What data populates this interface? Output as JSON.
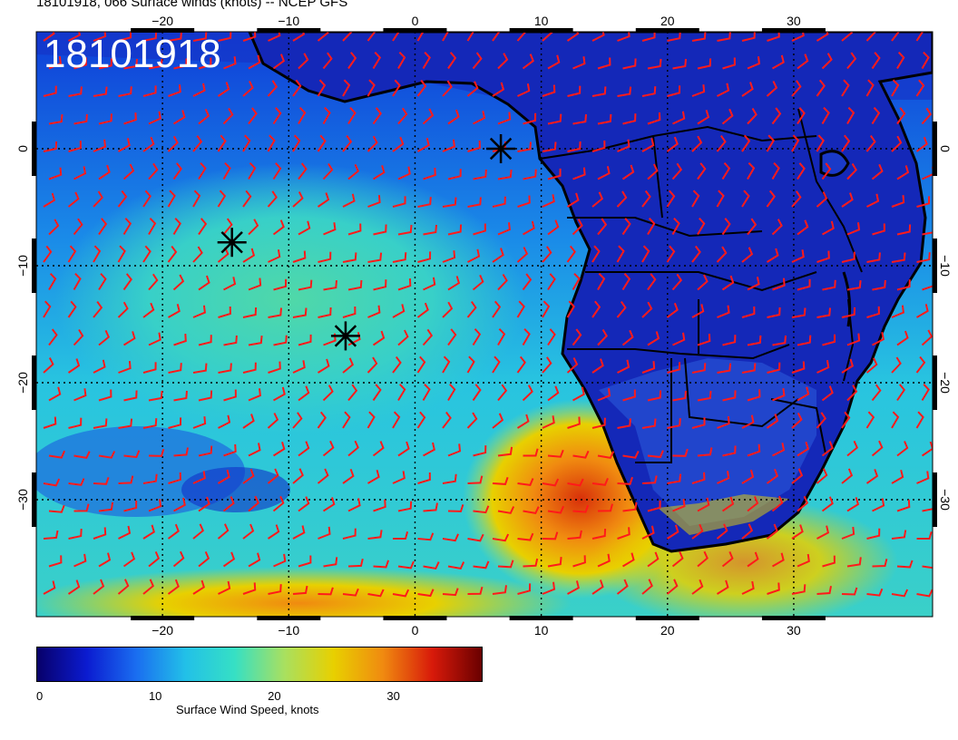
{
  "title": "18101918, 066 Surface winds (knots) -- NCEP GFS",
  "stamp": "18101918",
  "axes": {
    "lon_range": [
      -30,
      41
    ],
    "lat_range": [
      -40,
      10
    ],
    "lon_ticks": [
      "−20",
      "−10",
      "0",
      "10",
      "20",
      "30"
    ],
    "lon_tick_values": [
      -20,
      -10,
      0,
      10,
      20,
      30
    ],
    "lat_ticks": [
      "0",
      "−10",
      "−20",
      "−30"
    ],
    "lat_tick_values": [
      0,
      -10,
      -20,
      -30
    ]
  },
  "colorbar": {
    "caption": "Surface Wind Speed, knots",
    "ticks": [
      "0",
      "10",
      "20",
      "30"
    ],
    "tick_values": [
      0,
      10,
      20,
      30
    ],
    "max": 37.5,
    "colors": [
      "#08006a",
      "#0b1bd0",
      "#1a6df0",
      "#22c0e8",
      "#36e0c4",
      "#a8e060",
      "#e8d000",
      "#f08a10",
      "#d81a0a",
      "#6a0000"
    ]
  },
  "barb_color": "#ff1a1a",
  "storm_markers": [
    {
      "lon": -14.5,
      "lat": -8
    },
    {
      "lon": -5.5,
      "lat": -16
    },
    {
      "lon": 6.8,
      "lat": 0
    }
  ],
  "map_legend_icons": [
    "asterisk-icon"
  ]
}
